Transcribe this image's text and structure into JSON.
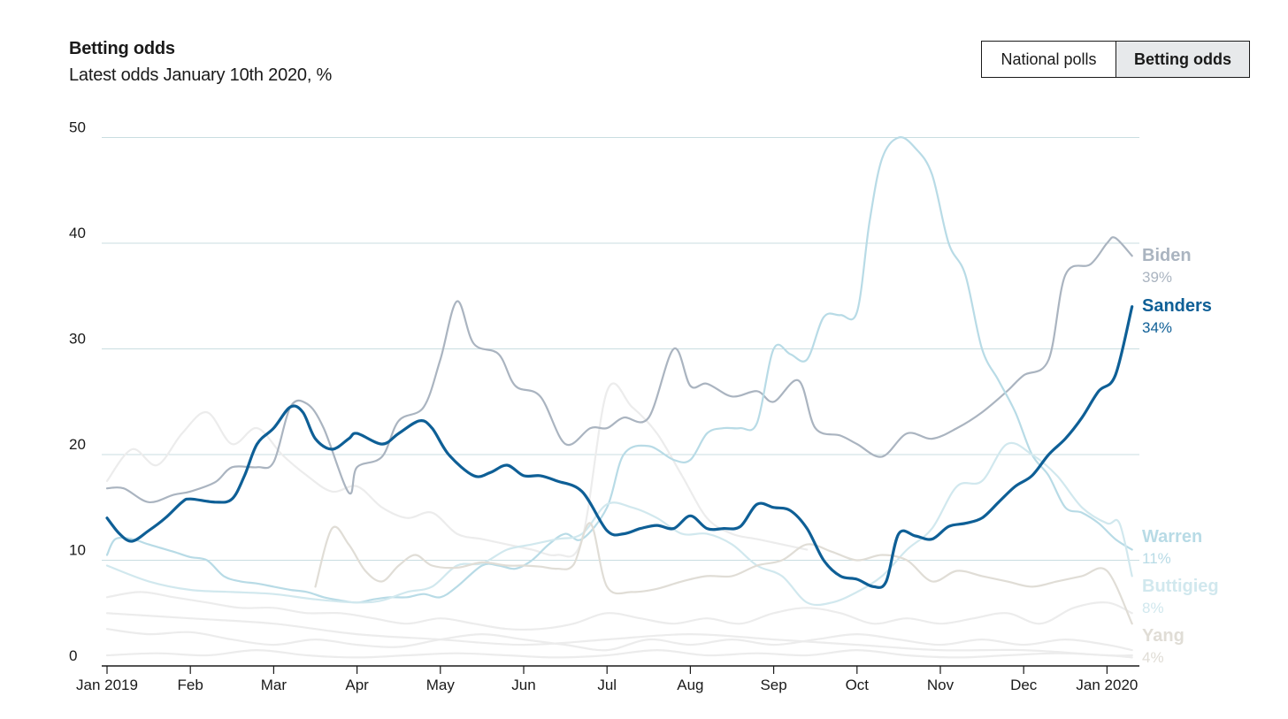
{
  "header": {
    "title": "Betting odds",
    "subtitle": "Latest odds January 10th 2020, %"
  },
  "toggle": {
    "options": [
      "National polls",
      "Betting odds"
    ],
    "selected": "Betting odds"
  },
  "colors": {
    "Sanders": "#0e5f96",
    "Biden": "#aab4c0",
    "Warren": "#b8dbe6",
    "Buttigieg": "#d1e8ee",
    "Yang": "#e0ddd6",
    "others": "#ececec",
    "grid": "#c9dde1",
    "axis": "#1a1a1a"
  },
  "chart_data": {
    "type": "line",
    "title": "Betting odds",
    "subtitle": "Latest odds January 10th 2020, %",
    "xlabel": "",
    "ylabel": "",
    "ylim": [
      0,
      50
    ],
    "xlim": [
      0,
      12.3
    ],
    "y_ticks": [
      0,
      10,
      20,
      30,
      40,
      50
    ],
    "x_ticks": [
      "Jan 2019",
      "Feb",
      "Mar",
      "Apr",
      "May",
      "Jun",
      "Jul",
      "Aug",
      "Sep",
      "Oct",
      "Nov",
      "Dec",
      "Jan 2020"
    ],
    "grid": true,
    "series": [
      {
        "name": "Biden",
        "end_label": "39%",
        "x": [
          0,
          0.2,
          0.5,
          0.8,
          1,
          1.3,
          1.5,
          1.8,
          2,
          2.2,
          2.4,
          2.6,
          2.9,
          3,
          3.3,
          3.5,
          3.8,
          4,
          4.2,
          4.4,
          4.7,
          4.9,
          5.2,
          5.5,
          5.8,
          6,
          6.2,
          6.5,
          6.8,
          7,
          7.2,
          7.5,
          7.8,
          8,
          8.3,
          8.5,
          8.8,
          9,
          9.3,
          9.6,
          9.9,
          10.2,
          10.5,
          10.8,
          11,
          11.3,
          11.5,
          11.8,
          12,
          12.1,
          12.3
        ],
        "values": [
          16.8,
          16.8,
          15.5,
          16.2,
          16.5,
          17.4,
          18.8,
          18.8,
          19.3,
          24.5,
          24.8,
          22.5,
          16.4,
          18.8,
          19.8,
          23.2,
          24.5,
          29.0,
          34.5,
          30.5,
          29.5,
          26.5,
          25.5,
          21.0,
          22.5,
          22.5,
          23.5,
          23.5,
          30.0,
          26.5,
          26.7,
          25.5,
          26.0,
          25.0,
          27.0,
          22.5,
          21.8,
          21.0,
          19.8,
          22.0,
          21.5,
          22.5,
          24.0,
          26.0,
          27.5,
          29.0,
          37.0,
          38.0,
          40.0,
          40.5,
          38.8
        ]
      },
      {
        "name": "Sanders",
        "end_label": "34%",
        "x": [
          0,
          0.15,
          0.3,
          0.5,
          0.7,
          0.9,
          1,
          1.3,
          1.5,
          1.65,
          1.8,
          2,
          2.2,
          2.35,
          2.5,
          2.7,
          2.9,
          3,
          3.3,
          3.5,
          3.75,
          3.9,
          4.1,
          4.4,
          4.6,
          4.8,
          5,
          5.2,
          5.4,
          5.7,
          6,
          6.2,
          6.4,
          6.6,
          6.8,
          7,
          7.2,
          7.4,
          7.6,
          7.8,
          8,
          8.2,
          8.4,
          8.6,
          8.8,
          9,
          9.2,
          9.35,
          9.5,
          9.7,
          9.9,
          10.1,
          10.3,
          10.5,
          10.7,
          10.9,
          11.1,
          11.3,
          11.5,
          11.7,
          11.9,
          12.1,
          12.3
        ],
        "values": [
          14.0,
          12.5,
          11.8,
          12.8,
          14.0,
          15.5,
          15.8,
          15.5,
          15.8,
          18.0,
          21.0,
          22.5,
          24.5,
          24.0,
          21.5,
          20.5,
          21.5,
          22.0,
          21.0,
          22.0,
          23.2,
          22.5,
          20.0,
          18.0,
          18.3,
          19.0,
          18.0,
          18.0,
          17.5,
          16.5,
          12.8,
          12.5,
          13.0,
          13.3,
          13.0,
          14.2,
          13.0,
          13.0,
          13.2,
          15.3,
          15.0,
          14.7,
          13.0,
          10.0,
          8.5,
          8.2,
          7.5,
          8.0,
          12.5,
          12.3,
          12.0,
          13.2,
          13.5,
          14.0,
          15.5,
          17.0,
          18.0,
          20.0,
          21.5,
          23.5,
          26.0,
          27.5,
          34.0
        ]
      },
      {
        "name": "Warren",
        "end_label": "11%",
        "x": [
          0,
          0.1,
          0.3,
          0.5,
          0.8,
          1,
          1.2,
          1.4,
          1.6,
          1.8,
          2,
          2.2,
          2.4,
          2.6,
          2.8,
          3,
          3.2,
          3.4,
          3.6,
          3.8,
          4,
          4.2,
          4.5,
          4.7,
          4.9,
          5.1,
          5.3,
          5.5,
          5.7,
          6,
          6.2,
          6.5,
          6.8,
          7,
          7.2,
          7.4,
          7.6,
          7.8,
          8,
          8.2,
          8.4,
          8.6,
          8.8,
          9,
          9.15,
          9.3,
          9.5,
          9.7,
          9.9,
          10.1,
          10.3,
          10.5,
          10.7,
          10.9,
          11.1,
          11.3,
          11.5,
          11.7,
          11.9,
          12.1,
          12.3
        ],
        "values": [
          10.5,
          12.0,
          12.0,
          11.5,
          10.8,
          10.3,
          10.0,
          8.5,
          8.0,
          7.8,
          7.5,
          7.2,
          7.0,
          6.5,
          6.2,
          6.0,
          6.3,
          6.5,
          6.5,
          6.8,
          6.5,
          7.5,
          9.5,
          9.5,
          9.2,
          10.0,
          11.5,
          12.5,
          12.0,
          15.0,
          20.0,
          20.8,
          19.5,
          19.5,
          22.0,
          22.5,
          22.5,
          23.0,
          30.0,
          29.5,
          29.0,
          33.0,
          33.2,
          33.5,
          42.0,
          48.0,
          50.0,
          49.0,
          46.5,
          40.0,
          37.0,
          30.0,
          27.0,
          24.0,
          20.0,
          18.0,
          15.0,
          14.5,
          13.5,
          12.0,
          11.0
        ]
      },
      {
        "name": "Buttigieg",
        "end_label": "8%",
        "x": [
          0,
          0.5,
          1,
          1.5,
          2,
          2.5,
          3,
          3.3,
          3.6,
          3.9,
          4.2,
          4.5,
          4.8,
          5.1,
          5.4,
          5.7,
          6,
          6.3,
          6.6,
          6.9,
          7.2,
          7.5,
          7.8,
          8.1,
          8.4,
          8.7,
          9,
          9.3,
          9.6,
          9.9,
          10.2,
          10.5,
          10.8,
          11.1,
          11.4,
          11.7,
          12,
          12.15,
          12.3
        ],
        "values": [
          9.5,
          8.0,
          7.2,
          7.0,
          6.8,
          6.3,
          6.0,
          6.2,
          7.0,
          7.5,
          9.5,
          9.7,
          11.0,
          11.5,
          12.0,
          12.5,
          15.3,
          15.0,
          14.0,
          12.5,
          12.5,
          11.5,
          9.5,
          8.5,
          6.0,
          6.0,
          7.0,
          8.5,
          11.0,
          13.0,
          17.0,
          17.5,
          21.0,
          20.0,
          18.0,
          15.0,
          13.5,
          13.5,
          8.5
        ]
      },
      {
        "name": "Yang",
        "end_label": "4%",
        "x": [
          2.5,
          2.7,
          2.9,
          3.1,
          3.3,
          3.5,
          3.7,
          3.9,
          4.2,
          4.5,
          4.8,
          5,
          5.2,
          5.4,
          5.6,
          5.8,
          6,
          6.3,
          6.6,
          6.9,
          7.2,
          7.5,
          7.8,
          8.1,
          8.4,
          8.7,
          9,
          9.3,
          9.6,
          9.9,
          10.2,
          10.5,
          10.8,
          11.1,
          11.4,
          11.7,
          12,
          12.3
        ],
        "values": [
          7.5,
          13.0,
          11.5,
          9.0,
          8.0,
          9.5,
          10.5,
          9.5,
          9.3,
          9.8,
          9.5,
          9.5,
          9.4,
          9.2,
          9.6,
          13.5,
          7.5,
          7.0,
          7.3,
          8.0,
          8.5,
          8.5,
          9.5,
          10.0,
          11.5,
          10.8,
          10.0,
          10.5,
          10.0,
          8.0,
          9.0,
          8.5,
          8.0,
          7.5,
          8.0,
          8.5,
          9.0,
          4.0
        ]
      },
      {
        "name": "",
        "end_label": "",
        "x": [
          0,
          0.3,
          0.6,
          0.9,
          1.2,
          1.5,
          1.8,
          2.1,
          2.4,
          2.7,
          3,
          3.3,
          3.6,
          3.9,
          4.2,
          4.5,
          4.8,
          5.1,
          5.4,
          5.7,
          6,
          6.3,
          6.6,
          6.9,
          7.2,
          7.5,
          7.8,
          8.1,
          8.4
        ],
        "values": [
          17.5,
          20.5,
          19.0,
          22.0,
          24.0,
          21.0,
          22.5,
          20.0,
          18.0,
          16.5,
          17.0,
          15.0,
          14.0,
          14.5,
          12.5,
          12.0,
          11.5,
          11.0,
          10.5,
          12.0,
          26.0,
          24.5,
          22.0,
          18.0,
          14.0,
          12.5,
          12.0,
          11.5,
          11.0
        ]
      },
      {
        "name": "",
        "end_label": "",
        "x": [
          0,
          0.4,
          0.8,
          1.2,
          1.6,
          2,
          2.4,
          2.8,
          3.2,
          3.6,
          4,
          4.4,
          4.8,
          5.2,
          5.6,
          6,
          6.4,
          6.8,
          7.2,
          7.6,
          8,
          8.4,
          8.8,
          9.2,
          9.6,
          10,
          10.4,
          10.8,
          11.2,
          11.6,
          12,
          12.3
        ],
        "values": [
          6.5,
          7.0,
          6.5,
          6.0,
          5.5,
          5.5,
          5.0,
          5.0,
          4.5,
          4.0,
          4.5,
          4.0,
          3.5,
          3.5,
          4.0,
          5.0,
          4.5,
          4.0,
          4.5,
          4.0,
          5.0,
          5.5,
          5.0,
          4.0,
          4.5,
          4.0,
          4.5,
          5.0,
          4.0,
          5.5,
          6.0,
          5.0
        ]
      },
      {
        "name": "",
        "end_label": "",
        "x": [
          0,
          0.5,
          1,
          1.5,
          2,
          2.5,
          3,
          3.5,
          4,
          4.5,
          5,
          5.5,
          6,
          6.5,
          7,
          7.5,
          8,
          8.5,
          9,
          9.5,
          10,
          10.5,
          11,
          11.5,
          12,
          12.3
        ],
        "values": [
          3.5,
          3.0,
          3.2,
          2.5,
          2.0,
          2.5,
          2.0,
          1.8,
          2.5,
          3.0,
          2.5,
          2.0,
          1.5,
          2.5,
          2.0,
          2.5,
          2.0,
          2.5,
          3.0,
          2.5,
          2.0,
          2.5,
          2.0,
          2.5,
          2.0,
          1.5
        ]
      },
      {
        "name": "",
        "end_label": "",
        "x": [
          0,
          0.6,
          1.2,
          1.8,
          2.4,
          3,
          3.6,
          4.2,
          4.8,
          5.4,
          6,
          6.6,
          7.2,
          7.8,
          8.4,
          9,
          9.6,
          10.2,
          10.8,
          11.4,
          12,
          12.3
        ],
        "values": [
          1.0,
          1.2,
          1.0,
          1.5,
          1.0,
          0.8,
          1.0,
          1.2,
          1.0,
          0.8,
          1.0,
          1.5,
          1.0,
          1.2,
          1.0,
          1.5,
          1.0,
          0.8,
          1.0,
          1.2,
          1.0,
          0.8
        ]
      },
      {
        "name": "",
        "end_label": "",
        "x": [
          0,
          1,
          2,
          3,
          4,
          5,
          6,
          7,
          8,
          9,
          10,
          11,
          12,
          12.3
        ],
        "values": [
          5.0,
          4.5,
          4.0,
          3.0,
          2.5,
          2.0,
          2.5,
          3.0,
          2.5,
          2.0,
          1.5,
          1.5,
          1.0,
          1.0
        ]
      }
    ]
  }
}
